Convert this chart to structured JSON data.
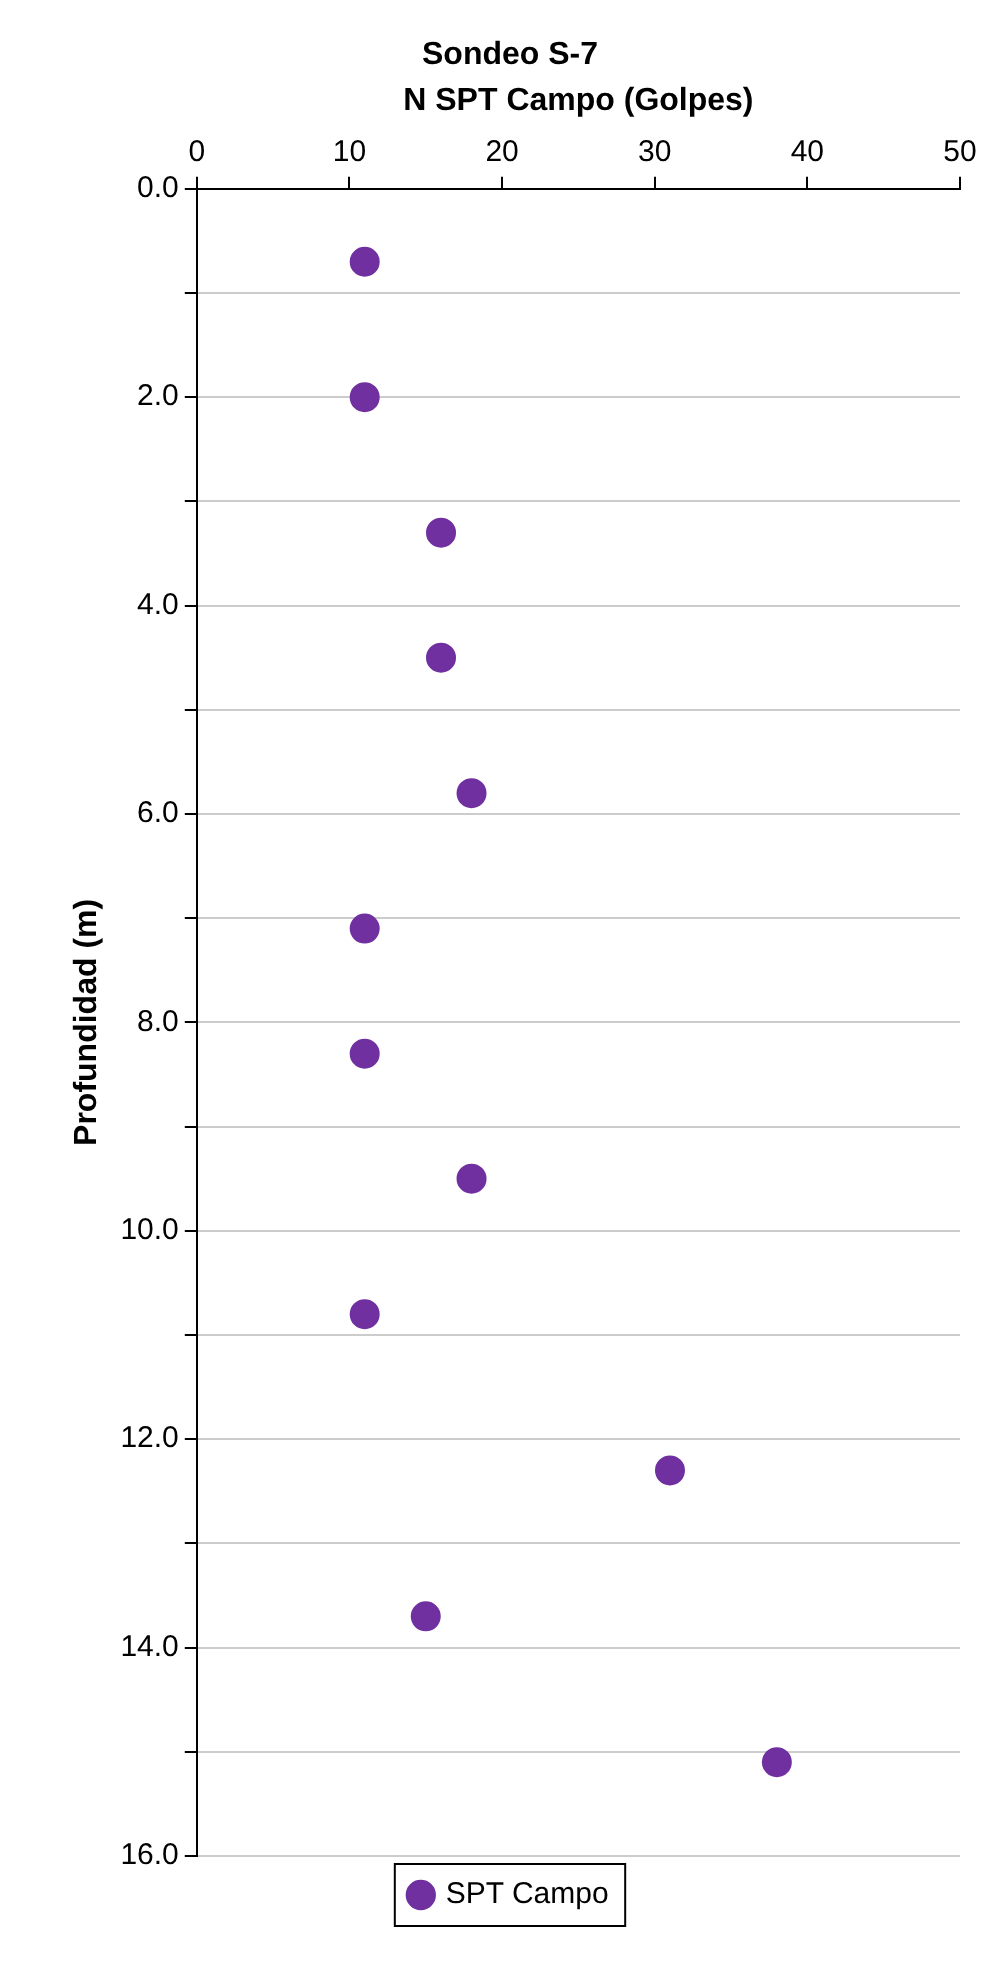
{
  "chart_data": {
    "type": "scatter",
    "title": "Sondeo S-7",
    "xlabel": "N SPT Campo (Golpes)",
    "ylabel": "Profundidad (m)",
    "xlim": [
      0,
      50
    ],
    "xticks": [
      0,
      10,
      20,
      30,
      40,
      50
    ],
    "ylim": [
      16,
      0
    ],
    "yticks": [
      {
        "value": 0,
        "label": "0.0"
      },
      {
        "value": 1,
        "label": null
      },
      {
        "value": 2,
        "label": "2.0"
      },
      {
        "value": 3,
        "label": null
      },
      {
        "value": 4,
        "label": "4.0"
      },
      {
        "value": 5,
        "label": null
      },
      {
        "value": 6,
        "label": "6.0"
      },
      {
        "value": 7,
        "label": null
      },
      {
        "value": 8,
        "label": "8.0"
      },
      {
        "value": 9,
        "label": null
      },
      {
        "value": 10,
        "label": "10.0"
      },
      {
        "value": 11,
        "label": null
      },
      {
        "value": 12,
        "label": "12.0"
      },
      {
        "value": 13,
        "label": null
      },
      {
        "value": 14,
        "label": "14.0"
      },
      {
        "value": 15,
        "label": null
      },
      {
        "value": 16,
        "label": "16.0"
      }
    ],
    "grid": "y",
    "legend": "bottom",
    "marker": "circle",
    "series": [
      {
        "name": "SPT Campo",
        "color": "#7030a0",
        "x": [
          11,
          11,
          16,
          16,
          18,
          11,
          11,
          18,
          11,
          31,
          15,
          38
        ],
        "values": [
          0.7,
          2.0,
          3.3,
          4.5,
          5.8,
          7.1,
          8.3,
          9.5,
          10.8,
          12.3,
          13.7,
          15.1
        ]
      }
    ]
  }
}
